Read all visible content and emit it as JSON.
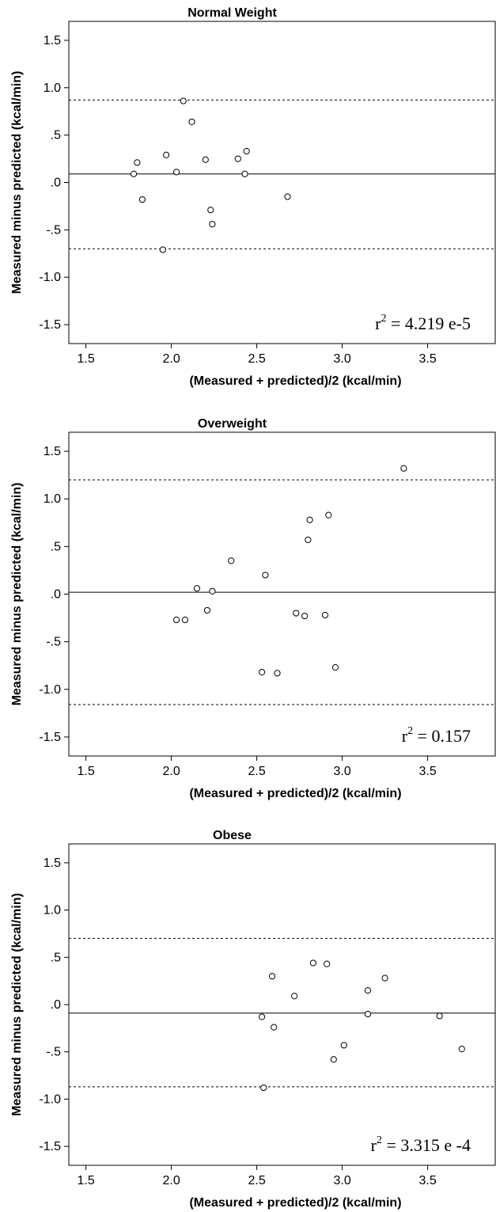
{
  "chart_data": [
    {
      "type": "scatter",
      "title": "Normal Weight",
      "xlabel": "(Measured + predicted)/2 (kcal/min)",
      "ylabel": "Measured minus predicted (kcal/min)",
      "xlim": [
        1.4,
        3.9
      ],
      "ylim": [
        -1.7,
        1.7
      ],
      "xticks": [
        "1.5",
        "2.0",
        "2.5",
        "3.0",
        "3.5"
      ],
      "xtick_values": [
        1.5,
        2.0,
        2.5,
        3.0,
        3.5
      ],
      "yticks": [
        "1.5",
        "1.0",
        ".5",
        ".0",
        "-.5",
        "-1.0",
        "-1.5"
      ],
      "ytick_values": [
        1.5,
        1.0,
        0.5,
        0.0,
        -0.5,
        -1.0,
        -1.5
      ],
      "mean_line": 0.09,
      "limits_of_agreement": [
        0.87,
        -0.7
      ],
      "r2_base": "r",
      "r2_sup": "2",
      "r2_value": " = 4.219 e-5",
      "points": [
        {
          "x": 1.78,
          "y": 0.09
        },
        {
          "x": 1.8,
          "y": 0.21
        },
        {
          "x": 1.83,
          "y": -0.18
        },
        {
          "x": 1.95,
          "y": -0.71
        },
        {
          "x": 1.97,
          "y": 0.29
        },
        {
          "x": 2.03,
          "y": 0.11
        },
        {
          "x": 2.07,
          "y": 0.86
        },
        {
          "x": 2.12,
          "y": 0.64
        },
        {
          "x": 2.2,
          "y": 0.24
        },
        {
          "x": 2.23,
          "y": -0.29
        },
        {
          "x": 2.24,
          "y": -0.44
        },
        {
          "x": 2.39,
          "y": 0.25
        },
        {
          "x": 2.43,
          "y": 0.09
        },
        {
          "x": 2.44,
          "y": 0.33
        },
        {
          "x": 2.68,
          "y": -0.15
        }
      ]
    },
    {
      "type": "scatter",
      "title": "Overweight",
      "xlabel": "(Measured + predicted)/2 (kcal/min)",
      "ylabel": "Measured minus predicted (kcal/min)",
      "xlim": [
        1.4,
        3.9
      ],
      "ylim": [
        -1.7,
        1.7
      ],
      "xticks": [
        "1.5",
        "2.0",
        "2.5",
        "3.0",
        "3.5"
      ],
      "xtick_values": [
        1.5,
        2.0,
        2.5,
        3.0,
        3.5
      ],
      "yticks": [
        "1.5",
        "1.0",
        ".5",
        ".0",
        "-.5",
        "-1.0",
        "-1.5"
      ],
      "ytick_values": [
        1.5,
        1.0,
        0.5,
        0.0,
        -0.5,
        -1.0,
        -1.5
      ],
      "mean_line": 0.02,
      "limits_of_agreement": [
        1.2,
        -1.16
      ],
      "r2_base": "r",
      "r2_sup": "2",
      "r2_value": " = 0.157",
      "points": [
        {
          "x": 2.03,
          "y": -0.27
        },
        {
          "x": 2.08,
          "y": -0.27
        },
        {
          "x": 2.15,
          "y": 0.06
        },
        {
          "x": 2.21,
          "y": -0.17
        },
        {
          "x": 2.24,
          "y": 0.03
        },
        {
          "x": 2.35,
          "y": 0.35
        },
        {
          "x": 2.53,
          "y": -0.82
        },
        {
          "x": 2.55,
          "y": 0.2
        },
        {
          "x": 2.62,
          "y": -0.83
        },
        {
          "x": 2.73,
          "y": -0.2
        },
        {
          "x": 2.78,
          "y": -0.23
        },
        {
          "x": 2.8,
          "y": 0.57
        },
        {
          "x": 2.81,
          "y": 0.78
        },
        {
          "x": 2.9,
          "y": -0.22
        },
        {
          "x": 2.92,
          "y": 0.83
        },
        {
          "x": 2.96,
          "y": -0.77
        },
        {
          "x": 3.36,
          "y": 1.32
        }
      ]
    },
    {
      "type": "scatter",
      "title": "Obese",
      "xlabel": "(Measured + predicted)/2 (kcal/min)",
      "ylabel": "Measured minus predicted (kcal/min)",
      "xlim": [
        1.4,
        3.9
      ],
      "ylim": [
        -1.7,
        1.7
      ],
      "xticks": [
        "1.5",
        "2.0",
        "2.5",
        "3.0",
        "3.5"
      ],
      "xtick_values": [
        1.5,
        2.0,
        2.5,
        3.0,
        3.5
      ],
      "yticks": [
        "1.5",
        "1.0",
        ".5",
        ".0",
        "-.5",
        "-1.0",
        "-1.5"
      ],
      "ytick_values": [
        1.5,
        1.0,
        0.5,
        0.0,
        -0.5,
        -1.0,
        -1.5
      ],
      "mean_line": -0.09,
      "limits_of_agreement": [
        0.7,
        -0.87
      ],
      "r2_base": "r",
      "r2_sup": "2",
      "r2_value": " = 3.315 e -4",
      "points": [
        {
          "x": 2.53,
          "y": -0.13
        },
        {
          "x": 2.54,
          "y": -0.88
        },
        {
          "x": 2.59,
          "y": 0.3
        },
        {
          "x": 2.6,
          "y": -0.24
        },
        {
          "x": 2.72,
          "y": 0.09
        },
        {
          "x": 2.83,
          "y": 0.44
        },
        {
          "x": 2.91,
          "y": 0.43
        },
        {
          "x": 2.95,
          "y": -0.58
        },
        {
          "x": 3.01,
          "y": -0.43
        },
        {
          "x": 3.15,
          "y": 0.15
        },
        {
          "x": 3.15,
          "y": -0.1
        },
        {
          "x": 3.25,
          "y": 0.28
        },
        {
          "x": 3.57,
          "y": -0.12
        },
        {
          "x": 3.7,
          "y": -0.47
        }
      ]
    }
  ]
}
